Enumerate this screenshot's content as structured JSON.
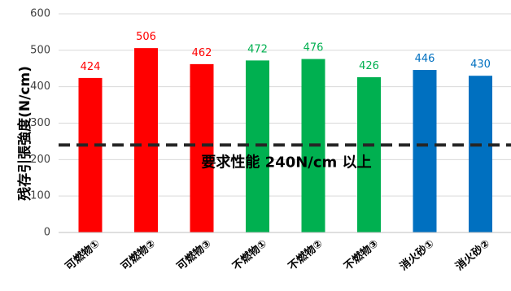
{
  "chart_data": {
    "type": "bar",
    "title": "",
    "xlabel": "",
    "ylabel": "残存引張強度(N/cm)",
    "ylim": [
      0,
      600
    ],
    "yticks": [
      "0",
      "100",
      "200",
      "300",
      "400",
      "500",
      "600"
    ],
    "grid": true,
    "categories": [
      "可燃物①",
      "可燃物②",
      "可燃物③",
      "不燃物①",
      "不燃物②",
      "不燃物③",
      "消火砂①",
      "消火砂②"
    ],
    "values": [
      424,
      506,
      462,
      472,
      476,
      426,
      446,
      430
    ],
    "bar_colors": [
      "#ff0000",
      "#ff0000",
      "#ff0000",
      "#00b050",
      "#00b050",
      "#00b050",
      "#0070c0",
      "#0070c0"
    ],
    "label_colors": [
      "#ff0000",
      "#ff0000",
      "#ff0000",
      "#00b050",
      "#00b050",
      "#00b050",
      "#0070c0",
      "#0070c0"
    ],
    "reference_line": {
      "value": 240,
      "label": "要求性能 240N/cm 以上",
      "color": "#262626",
      "style": "dashed"
    }
  }
}
